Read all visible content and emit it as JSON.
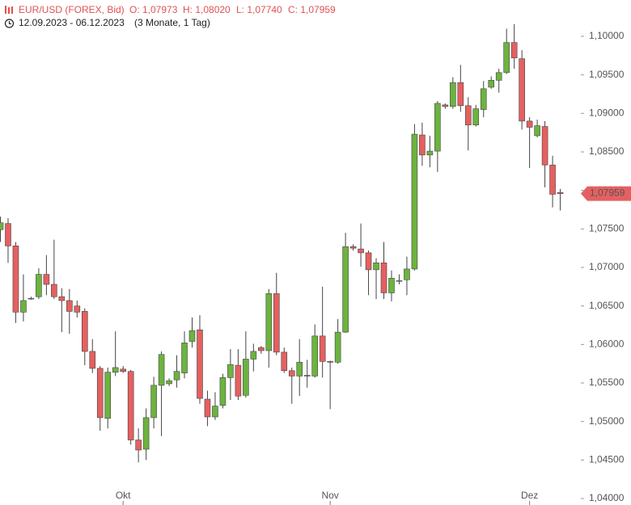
{
  "header": {
    "symbol": "EUR/USD (FOREX, Bid)",
    "open": "O: 1,07973",
    "high": "H: 1,08020",
    "low": "L: 1,07740",
    "close": "C: 1,07959",
    "range": "12.09.2023 - 06.12.2023",
    "period": "(3 Monate, 1 Tag)"
  },
  "chart_data": {
    "type": "candlestick",
    "categories": [
      null,
      null,
      null,
      null,
      null,
      null,
      null,
      null,
      null,
      null,
      null,
      null,
      null,
      null,
      null,
      null,
      "Okt",
      null,
      null,
      null,
      null,
      null,
      null,
      null,
      null,
      null,
      null,
      null,
      null,
      null,
      null,
      null,
      null,
      null,
      null,
      null,
      null,
      null,
      null,
      null,
      null,
      null,
      null,
      "Nov",
      null,
      null,
      null,
      null,
      null,
      null,
      null,
      null,
      null,
      null,
      null,
      null,
      null,
      null,
      null,
      null,
      null,
      null,
      null,
      null,
      null,
      null,
      null,
      null,
      null,
      "Dez",
      null,
      null,
      null,
      null
    ],
    "open": [
      1.0749,
      1.0757,
      1.0728,
      1.0642,
      1.0659,
      1.0662,
      1.0691,
      1.0678,
      1.0662,
      1.0657,
      1.065,
      1.0643,
      1.0591,
      1.0569,
      1.0504,
      1.0564,
      1.0568,
      1.0565,
      1.0476,
      1.0464,
      1.0505,
      1.0547,
      1.0549,
      1.0554,
      1.0563,
      1.0604,
      1.0619,
      1.0529,
      1.0506,
      1.0521,
      1.0557,
      1.0573,
      1.0534,
      1.0581,
      1.0596,
      1.0592,
      1.0666,
      1.059,
      1.0566,
      1.0559,
      1.056,
      1.0559,
      1.0611,
      1.0578,
      1.0577,
      1.0616,
      1.0727,
      1.0724,
      1.0719,
      1.0697,
      1.0706,
      1.0667,
      1.0682,
      1.0684,
      1.0698,
      1.0872,
      1.0846,
      1.0851,
      1.0911,
      1.0909,
      1.094,
      1.091,
      1.0885,
      1.0905,
      1.0934,
      1.0943,
      1.0953,
      1.0992,
      1.0971,
      1.089,
      1.0871,
      1.0883,
      1.0833,
      1.07973
    ],
    "high": [
      1.0766,
      1.0764,
      1.0733,
      1.0691,
      1.0662,
      1.0699,
      1.0716,
      1.0736,
      1.0673,
      1.0672,
      1.0657,
      1.0647,
      1.0607,
      1.0572,
      1.057,
      1.0617,
      1.0572,
      1.0567,
      1.0491,
      1.0517,
      1.0558,
      1.0591,
      1.0556,
      1.0586,
      1.0617,
      1.0635,
      1.0638,
      1.054,
      1.0538,
      1.0562,
      1.0594,
      1.0594,
      1.0617,
      1.0601,
      1.0598,
      1.0672,
      1.0693,
      1.0596,
      1.057,
      1.0607,
      1.058,
      1.0626,
      1.0675,
      1.0579,
      1.0633,
      1.0745,
      1.073,
      1.0757,
      1.0722,
      1.0712,
      1.0733,
      1.0696,
      1.0691,
      1.0714,
      1.0886,
      1.0888,
      1.0871,
      1.0916,
      1.0913,
      1.0947,
      1.0963,
      1.0921,
      1.0911,
      1.0942,
      1.0948,
      1.0958,
      1.101,
      1.1016,
      1.0982,
      1.0895,
      1.0892,
      1.089,
      1.0845,
      1.0802
    ],
    "low": [
      1.0733,
      1.0706,
      1.0628,
      1.063,
      1.0658,
      1.0659,
      1.0664,
      1.0659,
      1.0616,
      1.0614,
      1.0635,
      1.0573,
      1.0563,
      1.0488,
      1.0491,
      1.0559,
      1.0563,
      1.047,
      1.0447,
      1.045,
      1.0491,
      1.0481,
      1.0546,
      1.0544,
      1.0556,
      1.0596,
      1.0523,
      1.0494,
      1.0502,
      1.0517,
      1.0528,
      1.0528,
      1.0531,
      1.0565,
      1.0588,
      1.057,
      1.0586,
      1.0563,
      1.0523,
      1.0533,
      1.0544,
      1.0557,
      1.0557,
      1.0516,
      1.0575,
      1.0615,
      1.0722,
      1.0701,
      1.0664,
      1.0659,
      1.0659,
      1.0656,
      1.0678,
      1.0664,
      1.0696,
      1.0832,
      1.083,
      1.0824,
      1.0906,
      1.0906,
      1.0902,
      1.0852,
      1.0883,
      1.0895,
      1.0932,
      1.0927,
      1.0951,
      1.0958,
      1.0879,
      1.0829,
      1.0869,
      1.0804,
      1.0778,
      1.0774
    ],
    "close": [
      1.0758,
      1.0728,
      1.0642,
      1.0657,
      1.066,
      1.0691,
      1.0678,
      1.0662,
      1.0657,
      1.0643,
      1.0642,
      1.0591,
      1.0569,
      1.0505,
      1.0564,
      1.057,
      1.0565,
      1.0476,
      1.0463,
      1.0505,
      1.0547,
      1.0587,
      1.0553,
      1.0565,
      1.0602,
      1.0618,
      1.053,
      1.0506,
      1.052,
      1.0557,
      1.0574,
      1.0533,
      1.0581,
      1.0591,
      1.0592,
      1.0666,
      1.059,
      1.0566,
      1.0559,
      1.0577,
      1.0559,
      1.0611,
      1.0578,
      1.0577,
      1.0616,
      1.0727,
      1.0725,
      1.0719,
      1.0697,
      1.0706,
      1.0667,
      1.0686,
      1.0683,
      1.0698,
      1.0873,
      1.0846,
      1.0851,
      1.0913,
      1.0909,
      1.094,
      1.091,
      1.0885,
      1.0906,
      1.0932,
      1.0943,
      1.0953,
      1.0992,
      1.0972,
      1.089,
      1.0882,
      1.0884,
      1.0833,
      1.0795,
      1.07959
    ],
    "up_color": "#6cb33f",
    "down_color": "#e56060",
    "last_label": "1,07959",
    "ylim": [
      1.04,
      1.1
    ],
    "yticks": [
      {
        "value": 1.04,
        "label": "1,04000"
      },
      {
        "value": 1.045,
        "label": "1,04500"
      },
      {
        "value": 1.05,
        "label": "1,05000"
      },
      {
        "value": 1.055,
        "label": "1,05500"
      },
      {
        "value": 1.06,
        "label": "1,06000"
      },
      {
        "value": 1.065,
        "label": "1,06500"
      },
      {
        "value": 1.07,
        "label": "1,07000"
      },
      {
        "value": 1.075,
        "label": "1,07500"
      },
      {
        "value": 1.08,
        "label": "1,08000"
      },
      {
        "value": 1.085,
        "label": "1,08500"
      },
      {
        "value": 1.09,
        "label": "1,09000"
      },
      {
        "value": 1.095,
        "label": "1,09500"
      },
      {
        "value": 1.1,
        "label": "1,10000"
      }
    ],
    "grid": false
  }
}
